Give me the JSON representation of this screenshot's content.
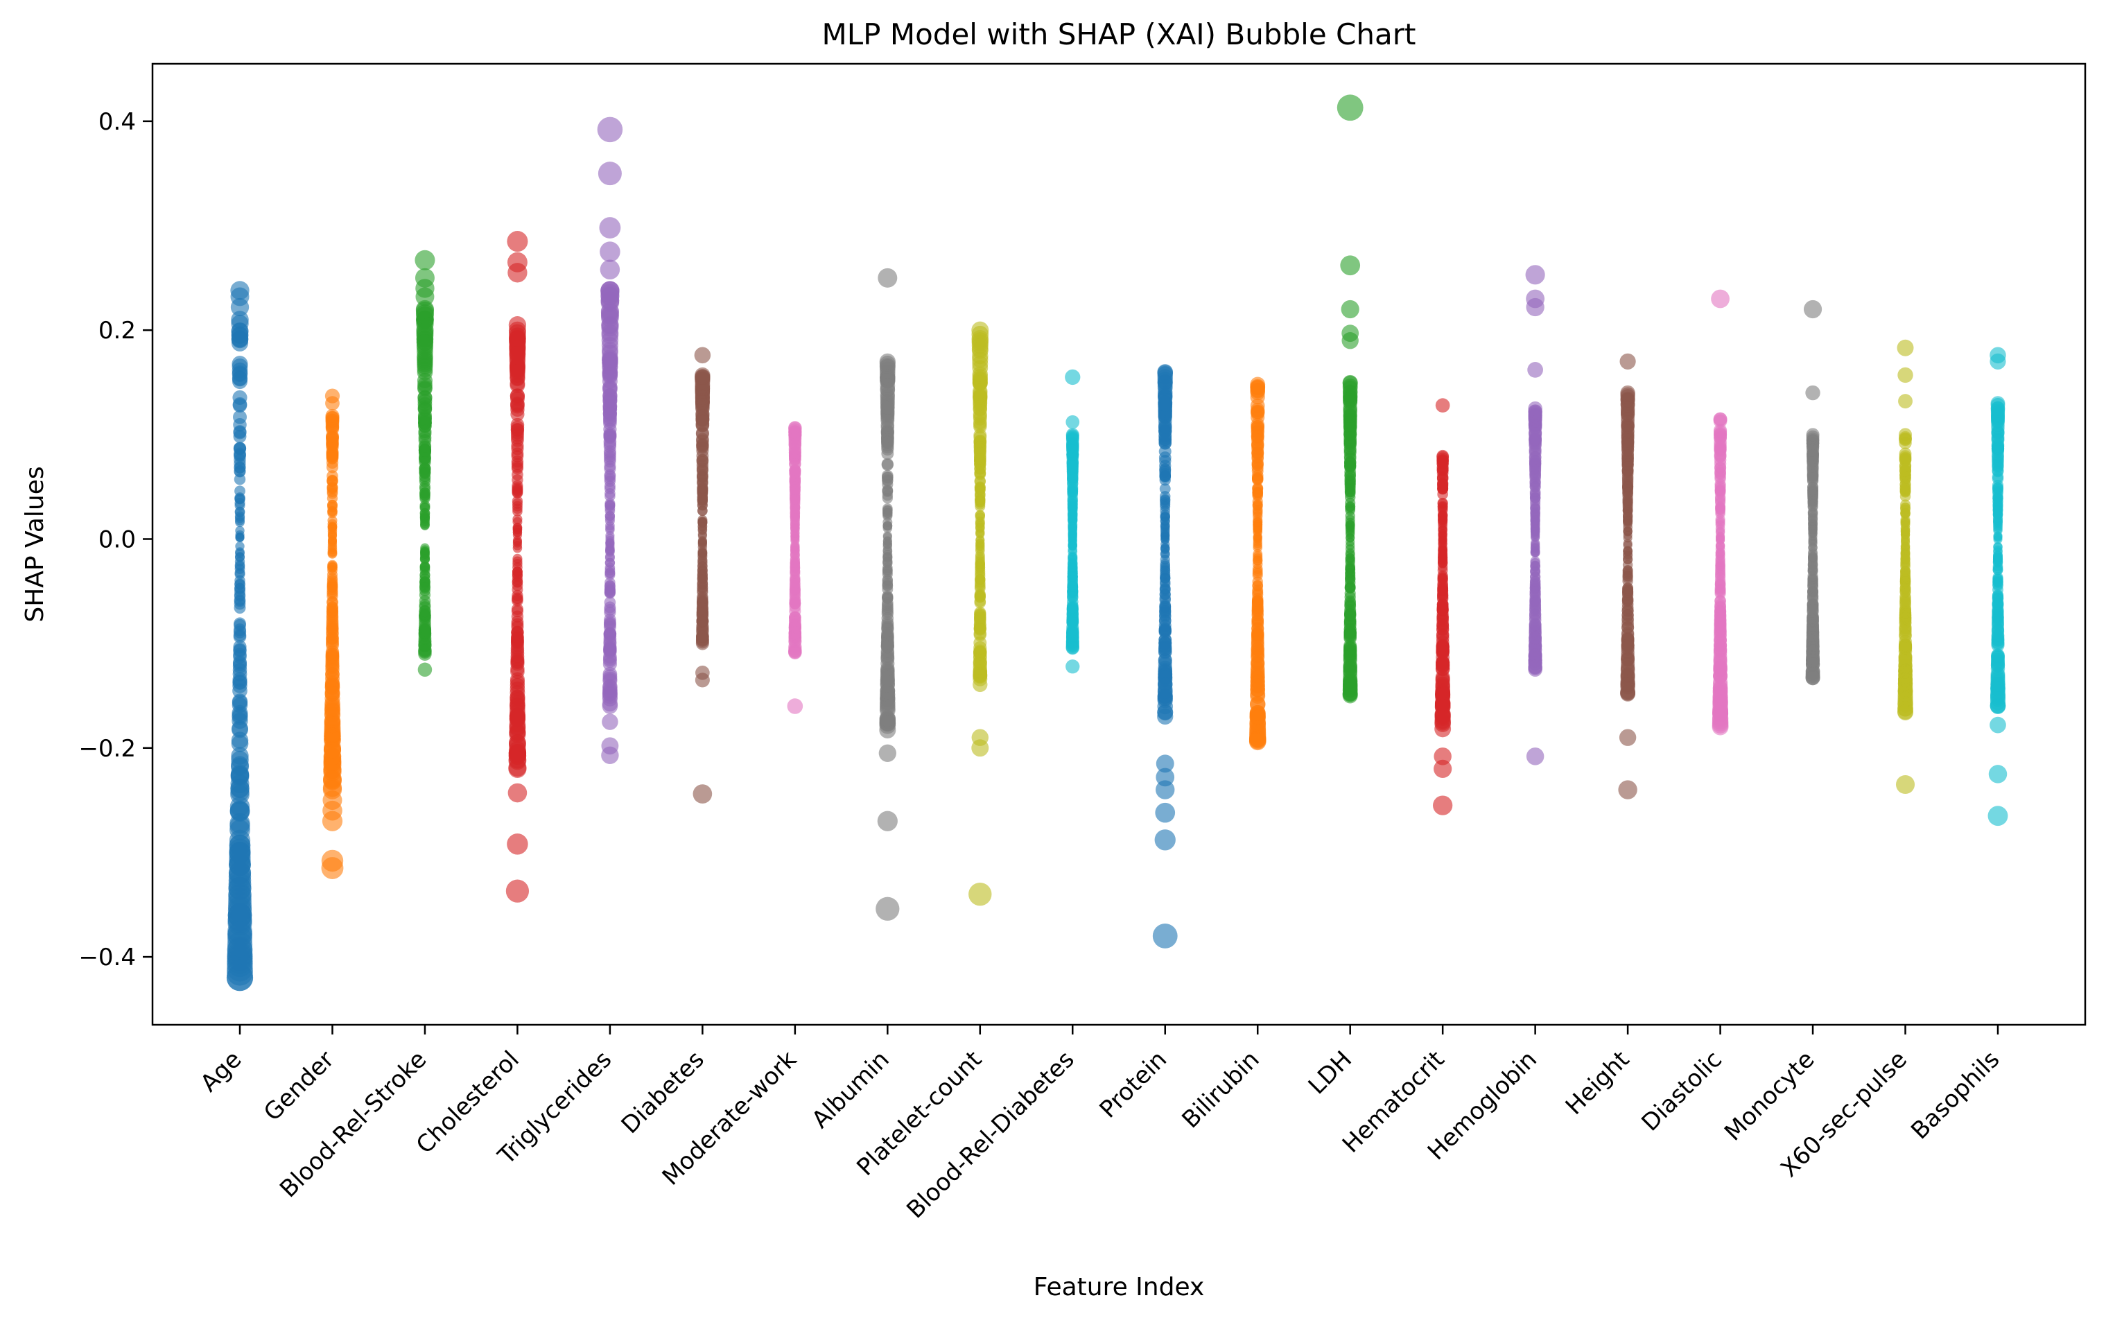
{
  "chart_data": {
    "type": "scatter",
    "title": "MLP Model with SHAP (XAI) Bubble Chart",
    "xlabel": "Feature Index",
    "ylabel": "SHAP Values",
    "ylim": [
      -0.465,
      0.455
    ],
    "yticks": [
      -0.4,
      -0.2,
      0.0,
      0.2,
      0.4
    ],
    "ytick_labels": [
      "−0.4",
      "−0.2",
      "0.0",
      "0.2",
      "0.4"
    ],
    "grid": false,
    "legend": "none",
    "bubble_size_encoding": "abs(SHAP value)",
    "categories": [
      "Age",
      "Gender",
      "Blood-Rel-Stroke",
      "Cholesterol",
      "Triglycerides",
      "Diabetes",
      "Moderate-work",
      "Albumin",
      "Platelet-count",
      "Blood-Rel-Diabetes",
      "Protein",
      "Bilirubin",
      "LDH",
      "Hematocrit",
      "Hemoglobin",
      "Height",
      "Diastolic",
      "Monocyte",
      "X60-sec-pulse",
      "Basophils"
    ],
    "series": [
      {
        "feature": "Age",
        "color": "#1f77b4",
        "range": [
          -0.42,
          0.21
        ],
        "outliers": [
          0.238,
          0.232,
          0.222,
          -0.3,
          -0.32,
          -0.34,
          -0.36,
          -0.378,
          -0.388,
          -0.415,
          -0.42
        ]
      },
      {
        "feature": "Gender",
        "color": "#ff7f0e",
        "range": [
          -0.24,
          0.12
        ],
        "outliers": [
          0.137,
          0.13,
          -0.25,
          -0.26,
          -0.27,
          -0.308,
          -0.315
        ]
      },
      {
        "feature": "Blood-Rel-Stroke",
        "color": "#2ca02c",
        "range": [
          -0.11,
          0.22
        ],
        "outliers": [
          0.267,
          0.25,
          0.24,
          0.232,
          -0.125
        ],
        "gap": [
          -0.005,
          0.01
        ]
      },
      {
        "feature": "Cholesterol",
        "color": "#d62728",
        "range": [
          -0.22,
          0.205
        ],
        "outliers": [
          0.285,
          0.265,
          0.255,
          -0.243,
          -0.292,
          -0.337
        ]
      },
      {
        "feature": "Triglycerides",
        "color": "#9467bd",
        "range": [
          -0.16,
          0.24
        ],
        "outliers": [
          0.392,
          0.35,
          0.298,
          0.275,
          0.258,
          -0.175,
          -0.198,
          -0.207
        ]
      },
      {
        "feature": "Diabetes",
        "color": "#8c564b",
        "range": [
          -0.1,
          0.16
        ],
        "outliers": [
          0.176,
          -0.128,
          -0.135,
          -0.244
        ]
      },
      {
        "feature": "Moderate-work",
        "color": "#e377c2",
        "range": [
          -0.11,
          0.11
        ],
        "outliers": [
          -0.16
        ]
      },
      {
        "feature": "Albumin",
        "color": "#7f7f7f",
        "range": [
          -0.185,
          0.17
        ],
        "outliers": [
          0.25,
          -0.205,
          -0.27,
          -0.354
        ]
      },
      {
        "feature": "Platelet-count",
        "color": "#bcbd22",
        "range": [
          -0.14,
          0.2
        ],
        "outliers": [
          -0.19,
          -0.2,
          -0.34
        ]
      },
      {
        "feature": "Blood-Rel-Diabetes",
        "color": "#17becf",
        "range": [
          -0.105,
          0.1
        ],
        "outliers": [
          0.155,
          0.112,
          -0.122
        ]
      },
      {
        "feature": "Protein",
        "color": "#1f77b4",
        "range": [
          -0.17,
          0.16
        ],
        "outliers": [
          -0.215,
          -0.228,
          -0.24,
          -0.262,
          -0.288,
          -0.38
        ]
      },
      {
        "feature": "Bilirubin",
        "color": "#ff7f0e",
        "range": [
          -0.195,
          0.148
        ],
        "outliers": []
      },
      {
        "feature": "LDH",
        "color": "#2ca02c",
        "range": [
          -0.15,
          0.15
        ],
        "outliers": [
          0.413,
          0.262,
          0.22,
          0.197,
          0.19
        ]
      },
      {
        "feature": "Hematocrit",
        "color": "#d62728",
        "range": [
          -0.185,
          0.085
        ],
        "outliers": [
          0.128,
          -0.208,
          -0.22,
          -0.255
        ]
      },
      {
        "feature": "Hemoglobin",
        "color": "#9467bd",
        "range": [
          -0.125,
          0.125
        ],
        "outliers": [
          0.253,
          0.23,
          0.222,
          0.162,
          -0.208
        ]
      },
      {
        "feature": "Height",
        "color": "#8c564b",
        "range": [
          -0.15,
          0.14
        ],
        "outliers": [
          0.17,
          -0.19,
          -0.24
        ]
      },
      {
        "feature": "Diastolic",
        "color": "#e377c2",
        "range": [
          -0.18,
          0.12
        ],
        "outliers": [
          0.23
        ]
      },
      {
        "feature": "Monocyte",
        "color": "#7f7f7f",
        "range": [
          -0.135,
          0.1
        ],
        "outliers": [
          0.22,
          0.14
        ]
      },
      {
        "feature": "X60-sec-pulse",
        "color": "#bcbd22",
        "range": [
          -0.17,
          0.1
        ],
        "outliers": [
          0.183,
          0.157,
          0.132,
          -0.235
        ]
      },
      {
        "feature": "Basophils",
        "color": "#17becf",
        "range": [
          -0.16,
          0.13
        ],
        "outliers": [
          0.176,
          0.17,
          -0.178,
          -0.225,
          -0.265
        ]
      }
    ]
  }
}
